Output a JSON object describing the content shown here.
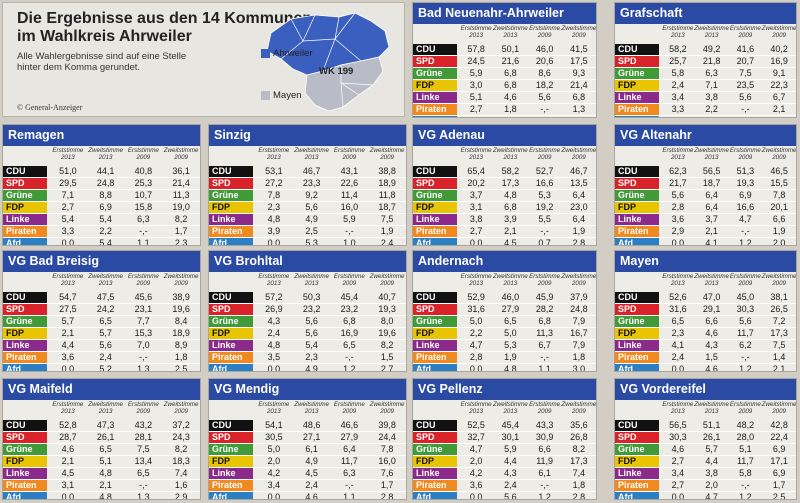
{
  "intro": {
    "title_line1": "Die Ergebnisse aus den 14 Kommunen",
    "title_line2": "im Wahlkreis Ahrweiler",
    "description": "Alle Wahlergebnisse sind auf eine Stelle hinter dem Komma gerundet.",
    "copyright": "© General-Anzeiger",
    "map_labels": {
      "ahrweiler": "Ahrweiler",
      "wk": "WK 199",
      "mayen": "Mayen"
    }
  },
  "columns": [
    "Erststimme\n2013",
    "Zweitstimme\n2013",
    "Erststimme\n2009",
    "Zweitstimme\n2009"
  ],
  "parties": [
    {
      "name": "CDU",
      "color": "#111111"
    },
    {
      "name": "SPD",
      "color": "#d9232a"
    },
    {
      "name": "Grüne",
      "color": "#3f9a37"
    },
    {
      "name": "FDP",
      "color": "#e8c500"
    },
    {
      "name": "Linke",
      "color": "#8b2a8b"
    },
    {
      "name": "Piraten",
      "color": "#f08a1e"
    },
    {
      "name": "Afd",
      "color": "#2b7fc4"
    }
  ],
  "colors": {
    "header": "#2a4aa3",
    "panel": "#eeece6",
    "map_blue": "#3a5fbf",
    "map_grey": "#b9bcc7"
  },
  "municipalities": [
    {
      "name": "Bad Neuenahr-Ahrweiler",
      "rows": [
        [
          "57,8",
          "50,1",
          "46,0",
          "41,5"
        ],
        [
          "24,5",
          "21,6",
          "20,6",
          "17,5"
        ],
        [
          "5,9",
          "6,8",
          "8,6",
          "9,3"
        ],
        [
          "3,0",
          "6,8",
          "18,2",
          "21,4"
        ],
        [
          "5,1",
          "4,6",
          "5,6",
          "6,8"
        ],
        [
          "2,7",
          "1,8",
          "-,-",
          "1,3"
        ],
        [
          "0,0",
          "6,2",
          "1,0",
          "2,2"
        ]
      ]
    },
    {
      "name": "Grafschaft",
      "rows": [
        [
          "58,2",
          "49,2",
          "41,6",
          "40,2"
        ],
        [
          "25,7",
          "21,8",
          "20,7",
          "16,9"
        ],
        [
          "5,8",
          "6,3",
          "7,5",
          "9,1"
        ],
        [
          "2,4",
          "7,1",
          "23,5",
          "22,3"
        ],
        [
          "3,4",
          "3,8",
          "5,6",
          "6,7"
        ],
        [
          "3,3",
          "2,2",
          "-,-",
          "2,1"
        ],
        [
          "0,0",
          "7,1",
          "1,1",
          "2,7"
        ]
      ]
    },
    {
      "name": "Remagen",
      "rows": [
        [
          "51,0",
          "44,1",
          "40,8",
          "36,1"
        ],
        [
          "29,5",
          "24,8",
          "25,3",
          "21,4"
        ],
        [
          "7,1",
          "8,8",
          "10,7",
          "11,3"
        ],
        [
          "2,7",
          "6,9",
          "15,8",
          "19,0"
        ],
        [
          "5,4",
          "5,4",
          "6,3",
          "8,2"
        ],
        [
          "3,3",
          "2,2",
          "-,-",
          "1,7"
        ],
        [
          "0,0",
          "5,4",
          "1,1",
          "2,3"
        ]
      ]
    },
    {
      "name": "Sinzig",
      "rows": [
        [
          "53,1",
          "46,7",
          "43,1",
          "38,8"
        ],
        [
          "27,2",
          "23,3",
          "22,6",
          "18,9"
        ],
        [
          "7,8",
          "9,2",
          "11,4",
          "11,8"
        ],
        [
          "2,3",
          "5,6",
          "16,0",
          "18,7"
        ],
        [
          "4,8",
          "4,9",
          "5,9",
          "7,5"
        ],
        [
          "3,9",
          "2,5",
          "-,-",
          "1,9"
        ],
        [
          "0,0",
          "5,3",
          "1,0",
          "2,4"
        ]
      ]
    },
    {
      "name": "VG Adenau",
      "rows": [
        [
          "65,4",
          "58,2",
          "52,7",
          "46,7"
        ],
        [
          "20,2",
          "17,3",
          "16,6",
          "13,5"
        ],
        [
          "3,7",
          "4,8",
          "5,3",
          "6,4"
        ],
        [
          "3,1",
          "6,8",
          "19,2",
          "23,0"
        ],
        [
          "3,8",
          "3,9",
          "5,5",
          "6,4"
        ],
        [
          "2,7",
          "2,1",
          "-,-",
          "1,9"
        ],
        [
          "0,0",
          "4,5",
          "0,7",
          "2,8"
        ]
      ]
    },
    {
      "name": "VG Altenahr",
      "rows": [
        [
          "62,3",
          "56,5",
          "51,3",
          "46,5"
        ],
        [
          "21,7",
          "18,7",
          "19,3",
          "15,5"
        ],
        [
          "5,6",
          "6,4",
          "6,9",
          "7,8"
        ],
        [
          "2,8",
          "6,4",
          "16,6",
          "20,1"
        ],
        [
          "3,6",
          "3,7",
          "4,7",
          "6,6"
        ],
        [
          "2,9",
          "2,1",
          "-,-",
          "1,9"
        ],
        [
          "0,0",
          "4,1",
          "1,2",
          "2,0"
        ]
      ]
    },
    {
      "name": "VG Bad Breisig",
      "rows": [
        [
          "54,7",
          "47,5",
          "45,6",
          "38,9"
        ],
        [
          "27,5",
          "24,2",
          "23,1",
          "19,6"
        ],
        [
          "5,7",
          "6,5",
          "7,7",
          "8,4"
        ],
        [
          "2,1",
          "5,7",
          "15,3",
          "18,9"
        ],
        [
          "4,4",
          "5,6",
          "7,0",
          "8,9"
        ],
        [
          "3,6",
          "2,4",
          "-,-",
          "1,8"
        ],
        [
          "0,0",
          "5,2",
          "1,3",
          "2,5"
        ]
      ]
    },
    {
      "name": "VG Brohltal",
      "rows": [
        [
          "57,2",
          "50,3",
          "45,4",
          "40,7"
        ],
        [
          "26,9",
          "23,2",
          "23,2",
          "19,3"
        ],
        [
          "4,3",
          "5,6",
          "6,8",
          "8,0"
        ],
        [
          "2,4",
          "5,6",
          "16,9",
          "19,6"
        ],
        [
          "4,8",
          "5,4",
          "6,5",
          "8,2"
        ],
        [
          "3,5",
          "2,3",
          "-,-",
          "1,5"
        ],
        [
          "0,0",
          "4,9",
          "1,2",
          "2,7"
        ]
      ]
    },
    {
      "name": "Andernach",
      "rows": [
        [
          "52,9",
          "46,0",
          "45,9",
          "37,9"
        ],
        [
          "31,6",
          "27,9",
          "28,2",
          "24,8"
        ],
        [
          "5,0",
          "6,5",
          "6,8",
          "7,9"
        ],
        [
          "2,2",
          "5,0",
          "11,3",
          "16,7"
        ],
        [
          "4,7",
          "5,3",
          "6,7",
          "7,9"
        ],
        [
          "2,8",
          "1,9",
          "-,-",
          "1,8"
        ],
        [
          "0,0",
          "4,8",
          "1,1",
          "3,0"
        ]
      ]
    },
    {
      "name": "Mayen",
      "rows": [
        [
          "52,6",
          "47,0",
          "45,0",
          "38,1"
        ],
        [
          "31,6",
          "29,1",
          "30,3",
          "26,5"
        ],
        [
          "6,5",
          "6,6",
          "5,6",
          "7,2"
        ],
        [
          "2,3",
          "4,6",
          "11,7",
          "17,3"
        ],
        [
          "4,1",
          "4,3",
          "6,2",
          "7,5"
        ],
        [
          "2,4",
          "1,5",
          "-,-",
          "1,4"
        ],
        [
          "0,0",
          "4,6",
          "1,2",
          "2,1"
        ]
      ]
    },
    {
      "name": "VG Maifeld",
      "rows": [
        [
          "52,8",
          "47,3",
          "43,2",
          "37,2"
        ],
        [
          "28,7",
          "26,1",
          "28,1",
          "24,3"
        ],
        [
          "4,6",
          "6,5",
          "7,5",
          "8,2"
        ],
        [
          "2,1",
          "5,1",
          "13,4",
          "18,3"
        ],
        [
          "4,5",
          "4,8",
          "6,5",
          "7,4"
        ],
        [
          "3,1",
          "2,1",
          "-,-",
          "1,6"
        ],
        [
          "0,0",
          "4,8",
          "1,3",
          "2,9"
        ]
      ]
    },
    {
      "name": "VG Mendig",
      "rows": [
        [
          "54,1",
          "48,6",
          "46,6",
          "39,8"
        ],
        [
          "30,5",
          "27,1",
          "27,9",
          "24,4"
        ],
        [
          "5,0",
          "6,1",
          "6,4",
          "7,8"
        ],
        [
          "2,0",
          "4,9",
          "11,7",
          "16,0"
        ],
        [
          "4,2",
          "4,5",
          "6,3",
          "7,6"
        ],
        [
          "3,4",
          "2,4",
          "-,-",
          "1,7"
        ],
        [
          "0,0",
          "4,6",
          "1,1",
          "2,8"
        ]
      ]
    },
    {
      "name": "VG Pellenz",
      "rows": [
        [
          "52,5",
          "45,4",
          "43,3",
          "35,6"
        ],
        [
          "32,7",
          "30,1",
          "30,9",
          "26,8"
        ],
        [
          "4,7",
          "5,9",
          "6,6",
          "8,2"
        ],
        [
          "2,0",
          "4,4",
          "11,9",
          "17,3"
        ],
        [
          "4,2",
          "4,3",
          "6,1",
          "7,4"
        ],
        [
          "3,6",
          "2,4",
          "-,-",
          "1,8"
        ],
        [
          "0,0",
          "5,6",
          "1,2",
          "2,8"
        ]
      ]
    },
    {
      "name": "VG Vordereifel",
      "rows": [
        [
          "56,5",
          "51,1",
          "48,2",
          "42,8"
        ],
        [
          "30,3",
          "26,1",
          "28,0",
          "22,4"
        ],
        [
          "4,6",
          "5,7",
          "5,1",
          "6,9"
        ],
        [
          "2,7",
          "4,4",
          "11,7",
          "17,1"
        ],
        [
          "3,4",
          "3,8",
          "5,8",
          "6,9"
        ],
        [
          "2,7",
          "2,0",
          "-,-",
          "1,7"
        ],
        [
          "0,0",
          "4,7",
          "1,2",
          "2,5"
        ]
      ]
    }
  ]
}
